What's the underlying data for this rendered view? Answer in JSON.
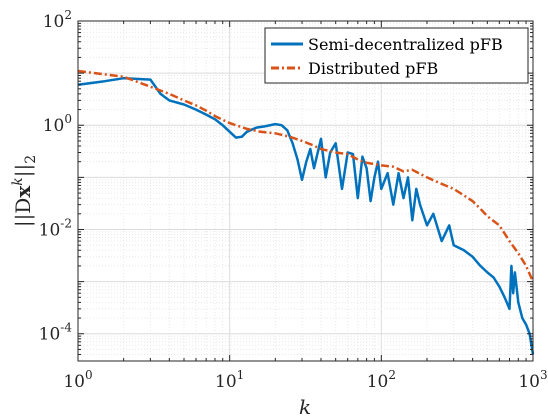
{
  "chart_data": {
    "type": "line",
    "title": "",
    "xlabel": "k",
    "ylabel": "||Dx^k||_2",
    "ylabel_parts": {
      "pre": "||D",
      "bold": "x",
      "sup": "k",
      "post": "||",
      "sub": "2"
    },
    "x_scale": "log",
    "y_scale": "log",
    "xlim": [
      1,
      1000
    ],
    "ylim": [
      3e-05,
      100
    ],
    "grid": true,
    "minor_grid": true,
    "legend_position": "top-right",
    "x_ticks": [
      {
        "base": "10",
        "exp": "0"
      },
      {
        "base": "10",
        "exp": "1"
      },
      {
        "base": "10",
        "exp": "2"
      },
      {
        "base": "10",
        "exp": "3"
      }
    ],
    "x_tick_values": [
      1,
      10,
      100,
      1000
    ],
    "y_ticks": [
      {
        "base": "10",
        "exp": "2"
      },
      {
        "base": "10",
        "exp": "0"
      },
      {
        "base": "10",
        "exp": "-2"
      },
      {
        "base": "10",
        "exp": "-4"
      }
    ],
    "y_tick_values": [
      100,
      1,
      0.01,
      0.0001
    ],
    "series": [
      {
        "name": "Semi-decentralized pFB",
        "color": "#0072BD",
        "style": "solid",
        "x": [
          1,
          1.5,
          2,
          3,
          3.5,
          4,
          5,
          6,
          7,
          8,
          9,
          10,
          11,
          12,
          13,
          15,
          17,
          20,
          22,
          24,
          26,
          28,
          30,
          32,
          34,
          36,
          40,
          43,
          46,
          50,
          55,
          60,
          65,
          70,
          75,
          80,
          85,
          90,
          95,
          100,
          110,
          120,
          130,
          140,
          150,
          160,
          170,
          180,
          200,
          220,
          250,
          280,
          300,
          350,
          400,
          450,
          500,
          550,
          600,
          650,
          700,
          720,
          740,
          760,
          800,
          850,
          900,
          950,
          1000
        ],
        "y": [
          6,
          7,
          8,
          7.5,
          4,
          3,
          2.5,
          2,
          1.6,
          1.3,
          1.0,
          0.75,
          0.58,
          0.6,
          0.75,
          0.9,
          0.95,
          1.05,
          1.0,
          0.8,
          0.45,
          0.22,
          0.09,
          0.2,
          0.35,
          0.15,
          0.55,
          0.1,
          0.3,
          0.45,
          0.06,
          0.3,
          0.28,
          0.04,
          0.25,
          0.15,
          0.035,
          0.1,
          0.2,
          0.06,
          0.12,
          0.03,
          0.12,
          0.04,
          0.1,
          0.015,
          0.06,
          0.03,
          0.012,
          0.02,
          0.006,
          0.012,
          0.005,
          0.004,
          0.003,
          0.002,
          0.0015,
          0.0012,
          0.0008,
          0.0005,
          0.0003,
          0.002,
          0.0006,
          0.0015,
          0.0004,
          0.0002,
          0.00015,
          0.0001,
          4e-05
        ]
      },
      {
        "name": "Distributed pFB",
        "color": "#D95319",
        "style": "dashdot",
        "x": [
          1,
          2,
          3,
          4,
          5,
          6,
          7,
          8,
          10,
          13,
          16,
          20,
          25,
          30,
          35,
          40,
          50,
          60,
          70,
          80,
          90,
          100,
          120,
          140,
          160,
          200,
          250,
          300,
          350,
          400,
          450,
          500,
          600,
          700,
          800,
          900,
          1000
        ],
        "y": [
          11,
          8.5,
          5.5,
          4.0,
          3.0,
          2.4,
          1.9,
          1.5,
          1.1,
          0.85,
          0.75,
          0.7,
          0.6,
          0.5,
          0.42,
          0.35,
          0.3,
          0.28,
          0.22,
          0.19,
          0.18,
          0.17,
          0.16,
          0.13,
          0.14,
          0.1,
          0.075,
          0.06,
          0.045,
          0.035,
          0.025,
          0.018,
          0.012,
          0.006,
          0.0035,
          0.002,
          0.001
        ]
      }
    ]
  }
}
